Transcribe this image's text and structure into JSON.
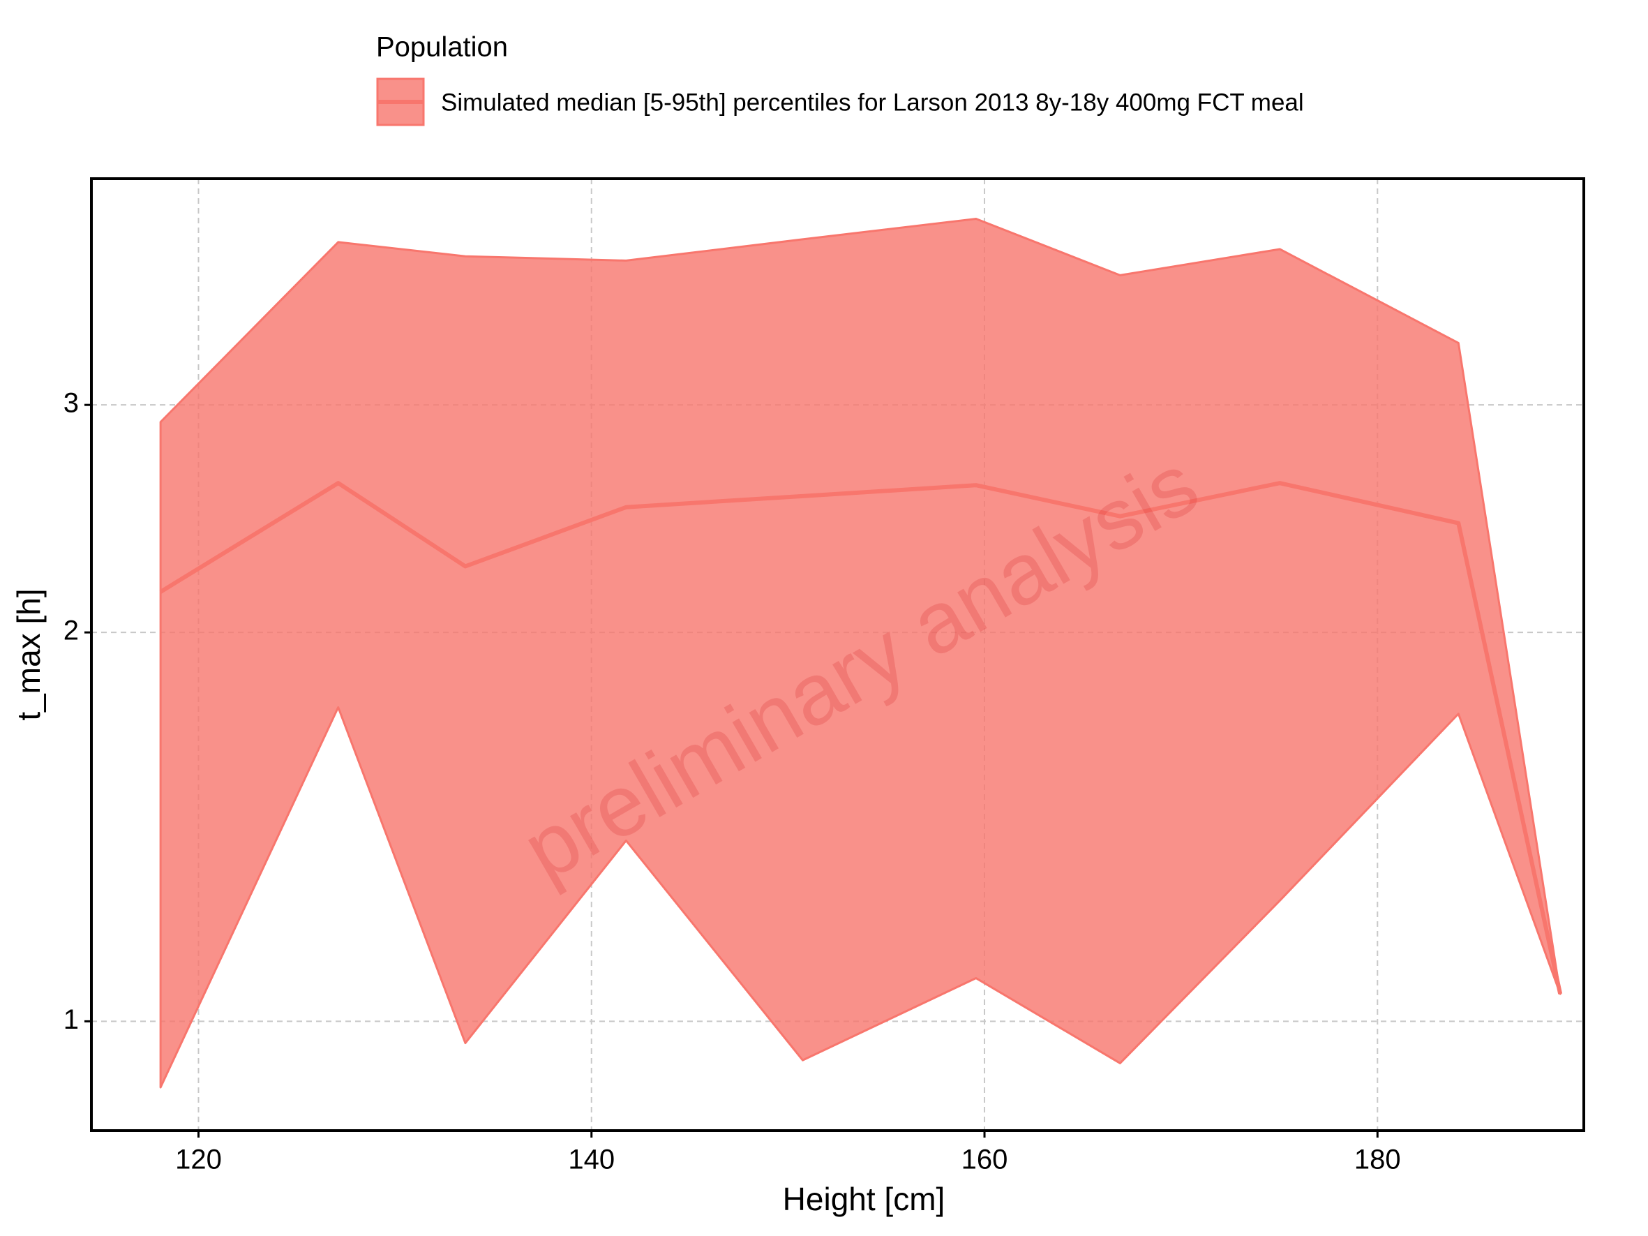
{
  "chart_data": {
    "type": "ribbon",
    "legend_title": "Population",
    "x_label": "Height [cm]",
    "y_label": "t_max [h]",
    "watermark": "preliminary analysis",
    "x": [
      118.07,
      127.11,
      133.58,
      141.76,
      150.75,
      159.57,
      166.9,
      175.03,
      184.12,
      189.3
    ],
    "series": [
      {
        "name": "Simulated median [5-95th] percentiles for Larson 2013 8y-18y 400mg FCT meal",
        "color": "#F8766D",
        "values": [
          2.15,
          2.61,
          2.25,
          2.5,
          2.55,
          2.6,
          2.46,
          2.61,
          2.43,
          1.05
        ],
        "lower": [
          0.889,
          1.75,
          0.962,
          1.38,
          0.933,
          1.08,
          0.928,
          1.24,
          1.73,
          1.05
        ],
        "upper": [
          2.91,
          4.01,
          3.91,
          3.88,
          4.03,
          4.18,
          3.78,
          3.96,
          3.35,
          1.05
        ]
      }
    ],
    "xlim": [
      114.55,
      190.5
    ],
    "xticks": [
      120,
      140,
      160,
      180
    ],
    "ylim": [
      0.823,
      4.49
    ],
    "yticks": [
      1,
      2,
      3
    ],
    "ylog": true,
    "grid": true
  }
}
